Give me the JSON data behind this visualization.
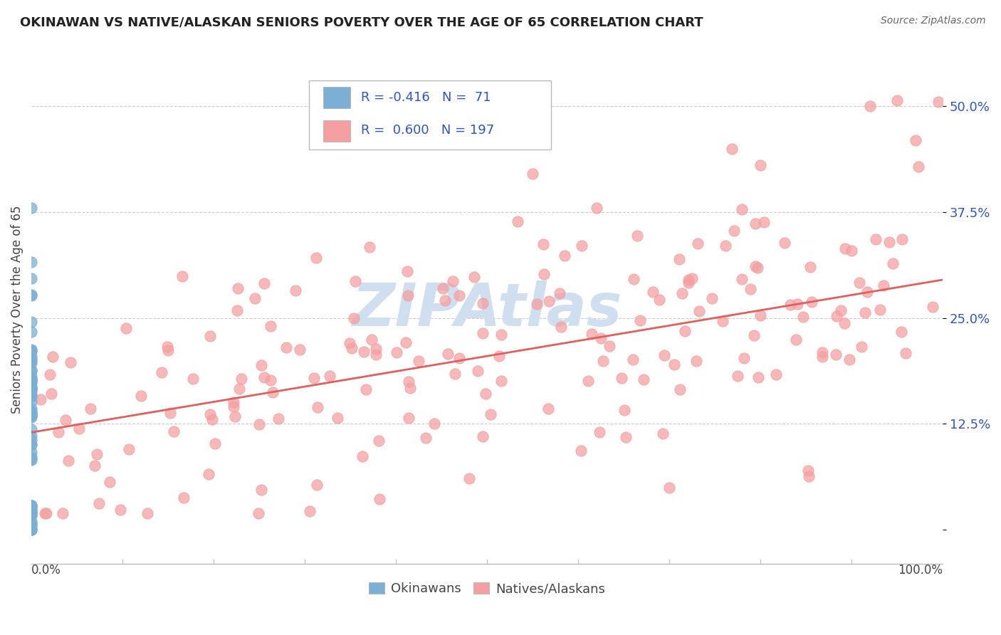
{
  "title": "OKINAWAN VS NATIVE/ALASKAN SENIORS POVERTY OVER THE AGE OF 65 CORRELATION CHART",
  "source": "Source: ZipAtlas.com",
  "ylabel": "Seniors Poverty Over the Age of 65",
  "yticks": [
    0.0,
    0.125,
    0.25,
    0.375,
    0.5
  ],
  "ytick_labels": [
    "",
    "12.5%",
    "25.0%",
    "37.5%",
    "50.0%"
  ],
  "xlim": [
    0.0,
    1.0
  ],
  "ylim": [
    -0.04,
    0.56
  ],
  "okinawan_color": "#7BAFD4",
  "native_color": "#F4A0A0",
  "trend_color": "#E06060",
  "legend_text_color": "#3355BB",
  "legend_R_okinawan": "R = -0.416",
  "legend_N_okinawan": "N =  71",
  "legend_R_native": "R =  0.600",
  "legend_N_native": "N = 197",
  "legend_label_okinawan": "Okinawans",
  "legend_label_native": "Natives/Alaskans",
  "background_color": "#FFFFFF",
  "grid_color": "#CCCCCC",
  "watermark_text": "ZIPAtlas",
  "watermark_color": "#D0DFF0",
  "trend_start_y": 0.115,
  "trend_end_y": 0.295,
  "title_fontsize": 13,
  "source_fontsize": 10,
  "ytick_fontsize": 13,
  "ylabel_fontsize": 12
}
